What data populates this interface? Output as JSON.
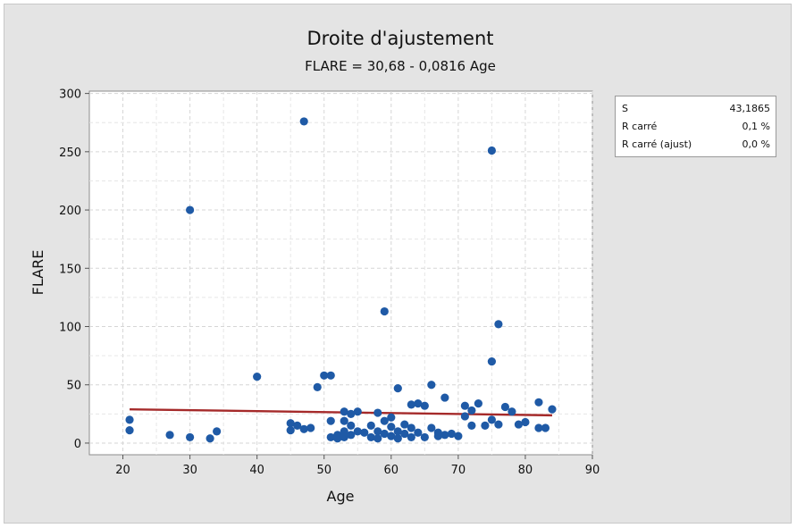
{
  "chart_data": {
    "type": "scatter",
    "title": "Droite d'ajustement",
    "subtitle": "FLARE = 30,68 - 0,0816 Age",
    "xlabel": "Age",
    "ylabel": "FLARE",
    "xlim": [
      15,
      90
    ],
    "ylim": [
      -10,
      302
    ],
    "xticks": [
      20,
      30,
      40,
      50,
      60,
      70,
      80,
      90
    ],
    "yticks": [
      0,
      50,
      100,
      150,
      200,
      250,
      300
    ],
    "grid": true,
    "point_color": "#1f5aa6",
    "line_color": "#a52a2a",
    "plot_background": "#ffffff",
    "page_background": "#e4e4e4",
    "fit_line": {
      "intercept": 30.68,
      "slope": -0.0816,
      "x_range": [
        21,
        84
      ]
    },
    "points": [
      {
        "x": 21,
        "y": 20
      },
      {
        "x": 21,
        "y": 11
      },
      {
        "x": 27,
        "y": 7
      },
      {
        "x": 30,
        "y": 5
      },
      {
        "x": 30,
        "y": 200
      },
      {
        "x": 33,
        "y": 4
      },
      {
        "x": 34,
        "y": 10
      },
      {
        "x": 40,
        "y": 57
      },
      {
        "x": 45,
        "y": 17
      },
      {
        "x": 45,
        "y": 11
      },
      {
        "x": 46,
        "y": 15
      },
      {
        "x": 47,
        "y": 276
      },
      {
        "x": 47,
        "y": 12
      },
      {
        "x": 48,
        "y": 13
      },
      {
        "x": 49,
        "y": 48
      },
      {
        "x": 50,
        "y": 58
      },
      {
        "x": 51,
        "y": 58
      },
      {
        "x": 51,
        "y": 19
      },
      {
        "x": 51,
        "y": 5
      },
      {
        "x": 52,
        "y": 7
      },
      {
        "x": 52,
        "y": 4
      },
      {
        "x": 53,
        "y": 27
      },
      {
        "x": 53,
        "y": 19
      },
      {
        "x": 53,
        "y": 10
      },
      {
        "x": 53,
        "y": 5
      },
      {
        "x": 54,
        "y": 25
      },
      {
        "x": 54,
        "y": 15
      },
      {
        "x": 54,
        "y": 7
      },
      {
        "x": 55,
        "y": 27
      },
      {
        "x": 55,
        "y": 10
      },
      {
        "x": 56,
        "y": 9
      },
      {
        "x": 57,
        "y": 15
      },
      {
        "x": 57,
        "y": 5
      },
      {
        "x": 58,
        "y": 26
      },
      {
        "x": 58,
        "y": 10
      },
      {
        "x": 58,
        "y": 4
      },
      {
        "x": 59,
        "y": 113
      },
      {
        "x": 59,
        "y": 19
      },
      {
        "x": 59,
        "y": 8
      },
      {
        "x": 60,
        "y": 22
      },
      {
        "x": 60,
        "y": 14
      },
      {
        "x": 60,
        "y": 6
      },
      {
        "x": 61,
        "y": 47
      },
      {
        "x": 61,
        "y": 10
      },
      {
        "x": 61,
        "y": 4
      },
      {
        "x": 62,
        "y": 16
      },
      {
        "x": 62,
        "y": 8
      },
      {
        "x": 63,
        "y": 33
      },
      {
        "x": 63,
        "y": 13
      },
      {
        "x": 63,
        "y": 5
      },
      {
        "x": 64,
        "y": 34
      },
      {
        "x": 64,
        "y": 9
      },
      {
        "x": 65,
        "y": 32
      },
      {
        "x": 65,
        "y": 5
      },
      {
        "x": 66,
        "y": 50
      },
      {
        "x": 66,
        "y": 13
      },
      {
        "x": 67,
        "y": 9
      },
      {
        "x": 67,
        "y": 6
      },
      {
        "x": 68,
        "y": 39
      },
      {
        "x": 68,
        "y": 7
      },
      {
        "x": 69,
        "y": 8
      },
      {
        "x": 70,
        "y": 6
      },
      {
        "x": 71,
        "y": 32
      },
      {
        "x": 71,
        "y": 23
      },
      {
        "x": 72,
        "y": 28
      },
      {
        "x": 72,
        "y": 15
      },
      {
        "x": 73,
        "y": 34
      },
      {
        "x": 74,
        "y": 15
      },
      {
        "x": 75,
        "y": 251
      },
      {
        "x": 75,
        "y": 70
      },
      {
        "x": 75,
        "y": 20
      },
      {
        "x": 76,
        "y": 102
      },
      {
        "x": 76,
        "y": 16
      },
      {
        "x": 77,
        "y": 31
      },
      {
        "x": 78,
        "y": 27
      },
      {
        "x": 79,
        "y": 16
      },
      {
        "x": 80,
        "y": 18
      },
      {
        "x": 82,
        "y": 35
      },
      {
        "x": 82,
        "y": 13
      },
      {
        "x": 83,
        "y": 13
      },
      {
        "x": 84,
        "y": 29
      }
    ]
  },
  "stats": [
    {
      "label": "S",
      "value": "43,1865"
    },
    {
      "label": "R carré",
      "value": "0,1 %"
    },
    {
      "label": "R carré (ajust)",
      "value": "0,0 %"
    }
  ]
}
